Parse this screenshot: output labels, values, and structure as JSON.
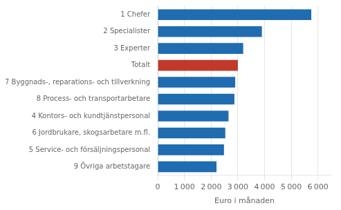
{
  "chart_data": {
    "type": "bar",
    "orientation": "horizontal",
    "categories": [
      "9 Övriga arbetstagare",
      "5 Service- och försäljningspersonal",
      "6 Jordbrukare, skogsarbetare m.fl.",
      "4 Kontors- och kundtjänstpersonal",
      "8 Process- och transportarbetare",
      "7 Byggnads-, reparations- och tillverkning",
      "Totalt",
      "3 Experter",
      "2 Specialister",
      "1 Chefer"
    ],
    "values": [
      2200,
      2480,
      2530,
      2650,
      2870,
      2900,
      3000,
      3200,
      3900,
      5750
    ],
    "colors": [
      "#1f6cb0",
      "#1f6cb0",
      "#1f6cb0",
      "#1f6cb0",
      "#1f6cb0",
      "#1f6cb0",
      "#c0392b",
      "#1f6cb0",
      "#1f6cb0",
      "#1f6cb0"
    ],
    "xlabel": "Euro i månaden",
    "xlim": [
      0,
      6500
    ],
    "xticks": [
      0,
      {
        "value": 1000,
        "label": "1 000"
      },
      {
        "value": 2000,
        "label": "2 000"
      },
      {
        "value": 3000,
        "label": "3 000"
      },
      {
        "value": 4000,
        "label": "4 000"
      },
      {
        "value": 5000,
        "label": "5 000"
      },
      {
        "value": 6000,
        "label": "6 000"
      }
    ],
    "grid": true
  }
}
